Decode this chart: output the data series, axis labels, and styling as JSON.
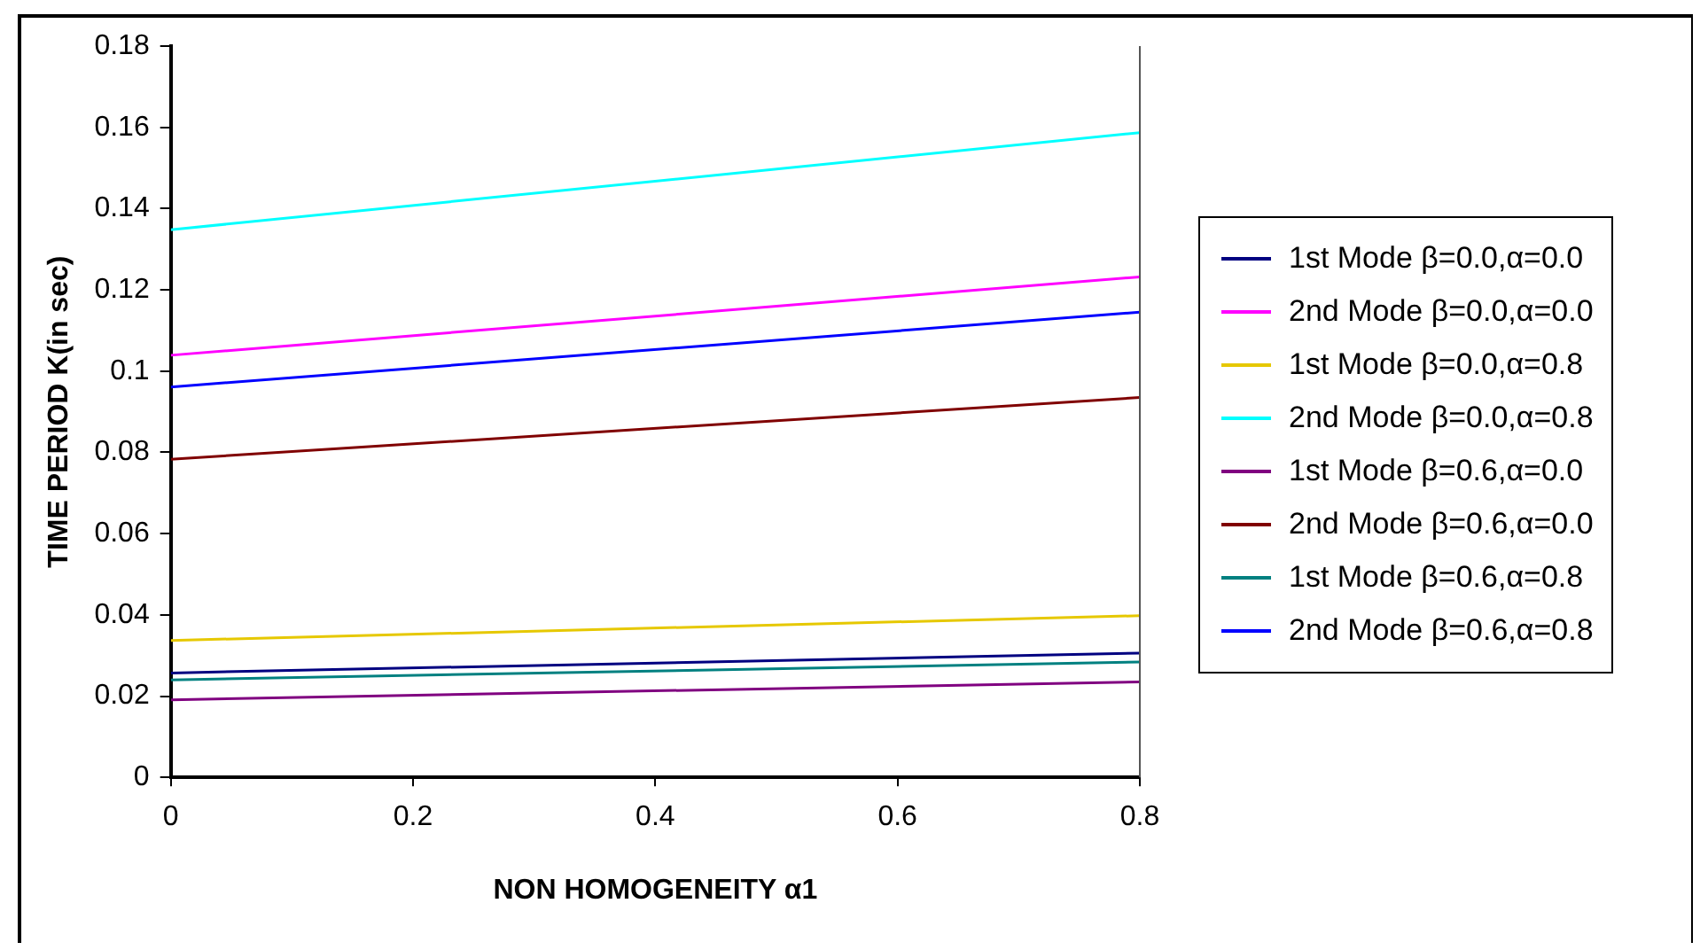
{
  "chart_data": {
    "type": "line",
    "xlabel": "NON HOMOGENEITY α1",
    "ylabel": "TIME PERIOD K(in sec)",
    "x": [
      0,
      0.8
    ],
    "xlim": [
      0,
      0.8
    ],
    "xticks": [
      0,
      0.2,
      0.4,
      0.6,
      0.8
    ],
    "ylim": [
      0,
      0.18
    ],
    "yticks": [
      0,
      0.02,
      0.04,
      0.06,
      0.08,
      0.1,
      0.12,
      0.14,
      0.16,
      0.18
    ],
    "grid": false,
    "legend": "right",
    "marker": "none",
    "line_style": "solid",
    "series": [
      {
        "name": "1st Mode β=0.0,α=0.0",
        "color": "#000080",
        "values": [
          0.0257,
          0.0306
        ]
      },
      {
        "name": "2nd Mode β=0.0,α=0.0",
        "color": "#ff00ff",
        "values": [
          0.1039,
          0.1232
        ]
      },
      {
        "name": "1st Mode β=0.0,α=0.8",
        "color": "#e6c800",
        "values": [
          0.0337,
          0.0398
        ]
      },
      {
        "name": "2nd Mode β=0.0,α=0.8",
        "color": "#00ffff",
        "values": [
          0.1348,
          0.1587
        ]
      },
      {
        "name": "1st Mode β=0.6,α=0.0",
        "color": "#800080",
        "values": [
          0.0191,
          0.0235
        ]
      },
      {
        "name": "2nd Mode β=0.6,α=0.0",
        "color": "#800000",
        "values": [
          0.0783,
          0.0935
        ]
      },
      {
        "name": "1st Mode β=0.6,α=0.8",
        "color": "#008080",
        "values": [
          0.024,
          0.0284
        ]
      },
      {
        "name": "2nd Mode β=0.6,α=0.8",
        "color": "#0000ff",
        "values": [
          0.0961,
          0.1145
        ]
      }
    ]
  }
}
